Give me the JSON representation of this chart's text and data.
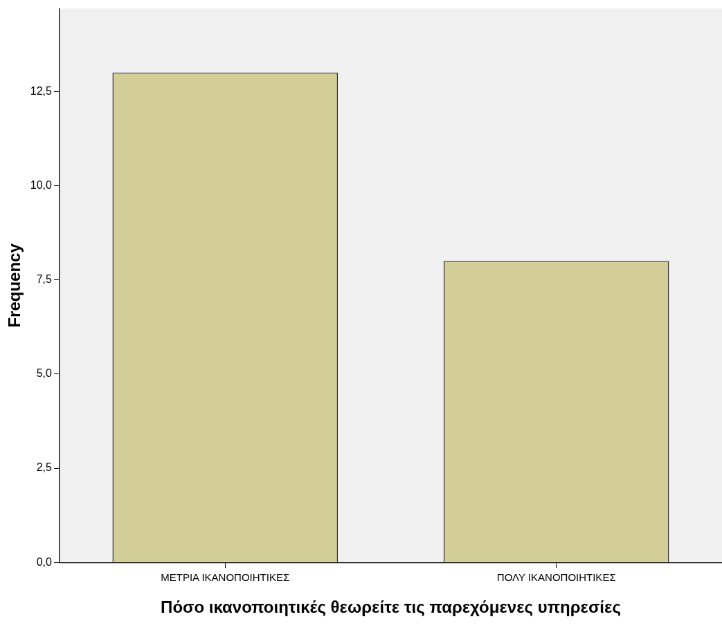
{
  "chart_data": {
    "type": "bar",
    "xlabel": "Πόσο ικανοποιητικές θεωρείτε τις παρεχόμενες υπηρεσίες",
    "ylabel": "Frequency",
    "categories": [
      "ΜΕΤΡΙΑ ΙΚΑΝΟΠΟΙΗΤΙΚΕΣ",
      "ΠΟΛΥ ΙΚΑΝΟΠΟΙΗΤΙΚΕΣ"
    ],
    "values": [
      13,
      8
    ],
    "color": "#d3ce97",
    "ylim": [
      0,
      14.7
    ],
    "yticks": [
      {
        "value": 0,
        "label": "0,0"
      },
      {
        "value": 2.5,
        "label": "2,5"
      },
      {
        "value": 5,
        "label": "5,0"
      },
      {
        "value": 7.5,
        "label": "7,5"
      },
      {
        "value": 10,
        "label": "10,0"
      },
      {
        "value": 12.5,
        "label": "12,5"
      }
    ],
    "grid": false,
    "legend": false
  }
}
